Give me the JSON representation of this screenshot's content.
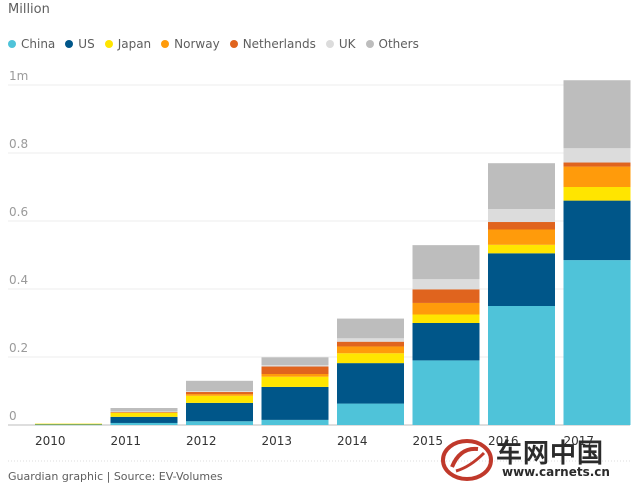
{
  "unit_label": "Million",
  "source": "Guardian graphic | Source: EV-Volumes",
  "watermark": {
    "text": "车网中国",
    "url": "www.carnets.cn",
    "logo_icon": "carnets-logo-icon"
  },
  "chart_data": {
    "type": "bar",
    "stacked": true,
    "categories": [
      "2010",
      "2011",
      "2012",
      "2013",
      "2014",
      "2015",
      "2016",
      "2017"
    ],
    "series": [
      {
        "name": "China",
        "color": "#4fc3d9",
        "values": [
          0.002,
          0.006,
          0.011,
          0.015,
          0.063,
          0.19,
          0.35,
          0.485
        ]
      },
      {
        "name": "US",
        "color": "#005689",
        "values": [
          0.001,
          0.018,
          0.054,
          0.097,
          0.119,
          0.11,
          0.155,
          0.175
        ]
      },
      {
        "name": "Japan",
        "color": "#ffe500",
        "values": [
          0.001,
          0.012,
          0.021,
          0.03,
          0.029,
          0.025,
          0.025,
          0.04
        ]
      },
      {
        "name": "Norway",
        "color": "#ff9b0b",
        "values": [
          0.0,
          0.002,
          0.005,
          0.008,
          0.02,
          0.034,
          0.045,
          0.06
        ]
      },
      {
        "name": "Netherlands",
        "color": "#e0641e",
        "values": [
          0.0,
          0.001,
          0.006,
          0.022,
          0.014,
          0.04,
          0.022,
          0.012
        ]
      },
      {
        "name": "UK",
        "color": "#dcdcdc",
        "values": [
          0.0,
          0.001,
          0.003,
          0.004,
          0.01,
          0.03,
          0.038,
          0.042
        ]
      },
      {
        "name": "Others",
        "color": "#bdbdbd",
        "values": [
          0.0,
          0.01,
          0.03,
          0.023,
          0.058,
          0.1,
          0.135,
          0.2
        ]
      }
    ],
    "yticks": [
      0,
      0.2,
      0.4,
      0.6,
      0.8,
      1
    ],
    "ytick_labels": [
      "0",
      "0.2",
      "0.4",
      "0.6",
      "0.8",
      "1m"
    ],
    "ylim": [
      0,
      1.03
    ],
    "grid": true,
    "legend_position": "top-left"
  }
}
